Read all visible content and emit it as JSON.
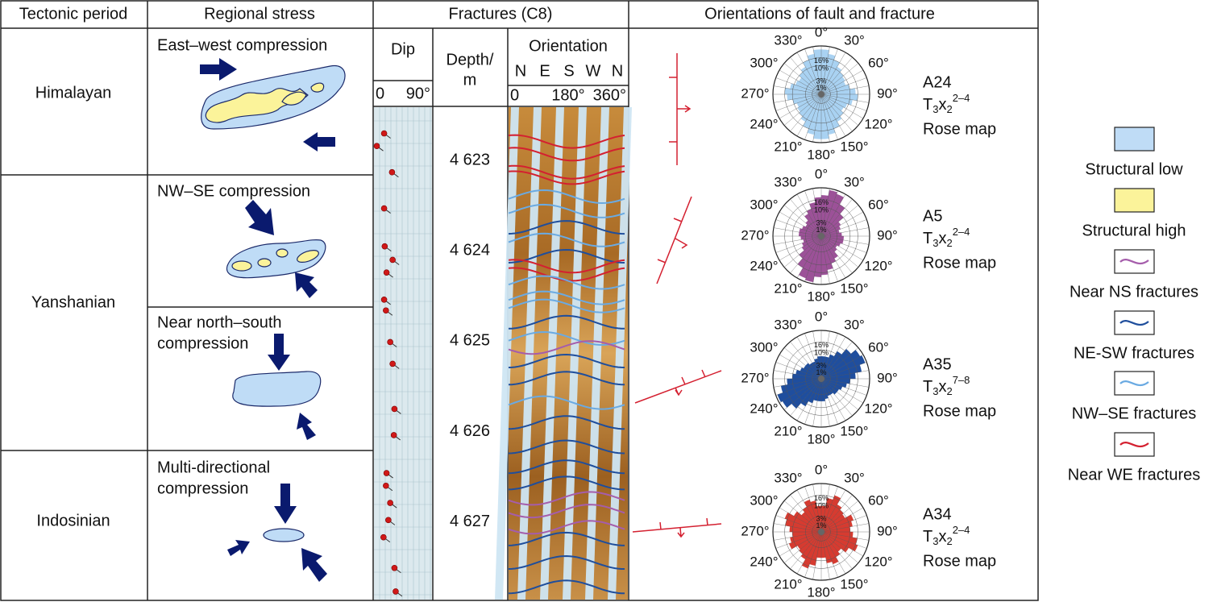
{
  "header": {
    "tectonic_period": "Tectonic period",
    "regional_stress": "Regional stress",
    "fractures": "Fractures (C8)",
    "orientations": "Orientations of fault and fracture"
  },
  "periods": [
    "Himalayan",
    "Yanshanian",
    "Indosinian"
  ],
  "stress": [
    {
      "lines": [
        "East–west compression"
      ]
    },
    {
      "lines": [
        "NW–SE compression"
      ]
    },
    {
      "lines": [
        "Near north–south",
        "compression"
      ]
    },
    {
      "lines": [
        "Multi-directional",
        "compression"
      ]
    }
  ],
  "fracture_log": {
    "dip_title": "Dip",
    "dip_ticks": [
      0,
      {
        "value": 90,
        "label": "90°"
      }
    ],
    "dip_lim": [
      0,
      90
    ],
    "depth_title": [
      "Depth/",
      "m"
    ],
    "depth_lim": [
      4622.41,
      4627.86
    ],
    "depth_ticks": [
      {
        "value": 4623,
        "label": "4 623"
      },
      {
        "value": 4624,
        "label": "4 624"
      },
      {
        "value": 4625,
        "label": "4 625"
      },
      {
        "value": 4626,
        "label": "4 626"
      },
      {
        "value": 4627,
        "label": "4 627"
      }
    ],
    "orientation_title": "Orientation",
    "compass": [
      "N",
      "E",
      "S",
      "W",
      "N"
    ],
    "orientation_lim": [
      0,
      360
    ],
    "orientation_ticks": [
      0,
      {
        "value": 180,
        "label": "180°"
      },
      {
        "value": 360,
        "label": "360°"
      }
    ],
    "dips": {
      "depths": [
        4622.7,
        4622.84,
        4623.13,
        4623.53,
        4623.95,
        4624.1,
        4624.24,
        4624.54,
        4624.66,
        4625.01,
        4625.25,
        4625.75,
        4626.04,
        4626.46,
        4626.6,
        4626.79,
        4626.98,
        4627.17,
        4627.51,
        4627.77
      ],
      "values": [
        14,
        2,
        27,
        14,
        15,
        28,
        18,
        14,
        17,
        24,
        28,
        31,
        30,
        18,
        17,
        24,
        21,
        13,
        31,
        33
      ]
    },
    "fractures": {
      "depths": [
        4622.79,
        4622.93,
        4623.13,
        4623.19,
        4623.4,
        4623.56,
        4623.74,
        4623.88,
        4624.06,
        4624.17,
        4624.26,
        4624.35,
        4624.52,
        4624.61,
        4624.79,
        4624.97,
        4625.07,
        4625.22,
        4625.41,
        4625.68,
        4625.9,
        4626.17,
        4626.39,
        4626.57,
        4626.74,
        4626.88,
        4627.06,
        4627.19,
        4627.45,
        4627.72
      ],
      "legend_index": [
        5,
        5,
        5,
        5,
        4,
        4,
        3,
        4,
        3,
        5,
        5,
        4,
        4,
        4,
        3,
        4,
        2,
        3,
        3,
        4,
        3,
        3,
        3,
        3,
        2,
        2,
        2,
        3,
        3,
        3
      ]
    }
  },
  "rose_axis": {
    "rlim": [
      0,
      28
    ],
    "rings": [
      {
        "value": 16,
        "label": "16%"
      },
      {
        "value": 10,
        "label": "10%"
      },
      {
        "value": 3,
        "label": "3%"
      },
      {
        "value": 1,
        "label": "1%"
      }
    ],
    "angles": [
      {
        "value": 0,
        "label": "0°"
      },
      {
        "value": 30,
        "label": "30°"
      },
      {
        "value": 60,
        "label": "60°"
      },
      {
        "value": 90,
        "label": "90°"
      },
      {
        "value": 120,
        "label": "120°"
      },
      {
        "value": 150,
        "label": "150°"
      },
      {
        "value": 180,
        "label": "180°"
      },
      {
        "value": 210,
        "label": "210°"
      },
      {
        "value": 240,
        "label": "240°"
      },
      {
        "value": 270,
        "label": "270°"
      },
      {
        "value": 300,
        "label": "300°"
      },
      {
        "value": 330,
        "label": "330°"
      }
    ],
    "bin_width": 10
  },
  "roses": [
    {
      "name": "A24",
      "symbol": "T",
      "symbol_sub": "3",
      "letter": "x",
      "letter_sub": "2",
      "sup": "2–4",
      "caption": "Rose map",
      "color": "#a9d2f2",
      "values": [
        24,
        20,
        16,
        12,
        10,
        9,
        8,
        10,
        14,
        16,
        12,
        9,
        8,
        10,
        12,
        16,
        20,
        24
      ]
    },
    {
      "name": "A5",
      "symbol": "T",
      "symbol_sub": "3",
      "letter": "x",
      "letter_sub": "2",
      "sup": "2–4",
      "caption": "Rose map",
      "color": "#9c5198",
      "values": [
        20,
        26,
        24,
        16,
        10,
        6,
        5,
        4,
        5,
        6,
        6,
        5,
        4,
        5,
        8,
        10,
        14,
        18
      ]
    },
    {
      "name": "A35",
      "symbol": "T",
      "symbol_sub": "3",
      "letter": "x",
      "letter_sub": "2",
      "sup": "7–8",
      "caption": "Rose map",
      "color": "#1f4e9e",
      "values": [
        6,
        6,
        8,
        12,
        18,
        24,
        26,
        20,
        14,
        10,
        8,
        6,
        5,
        5,
        4,
        4,
        5,
        6
      ]
    },
    {
      "name": "A34",
      "symbol": "T",
      "symbol_sub": "3",
      "letter": "x",
      "letter_sub": "2",
      "sup": "2–4",
      "caption": "Rose map",
      "color": "#d63b30",
      "values": [
        8,
        14,
        18,
        12,
        10,
        9,
        14,
        12,
        10,
        12,
        16,
        18,
        12,
        8,
        10,
        14,
        12,
        8
      ]
    }
  ],
  "legend": [
    {
      "label": "Structural low",
      "fill": "#bfdcf6"
    },
    {
      "label": "Structural high",
      "fill": "#fbf39a"
    },
    {
      "label": "Near NS fractures",
      "line": "#a55dab"
    },
    {
      "label": "NE-SW fractures",
      "line": "#1f4e9c"
    },
    {
      "label": "NW–SE fractures",
      "line": "#6aaae2"
    },
    {
      "label": "Near WE fractures",
      "line": "#d42030"
    }
  ]
}
